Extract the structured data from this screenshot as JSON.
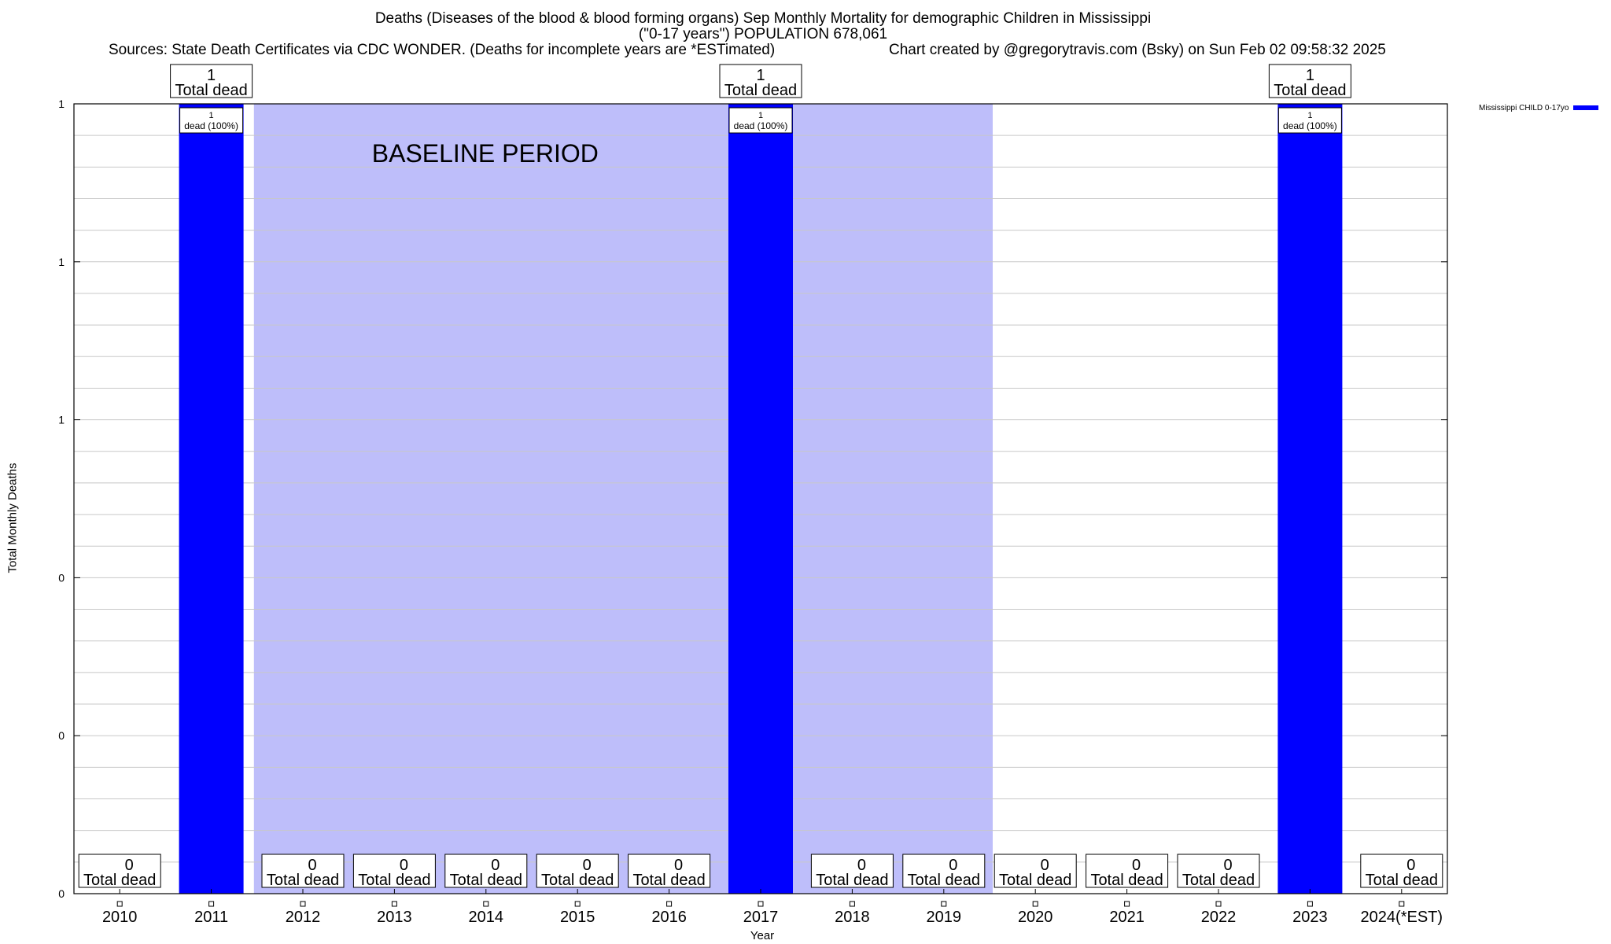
{
  "title": {
    "line1": "Deaths (Diseases of the blood & blood forming organs) Sep Monthly Mortality for demographic Children in Mississippi",
    "line2": "(\"0-17 years\") POPULATION 678,061",
    "sources": "Sources: State Death Certificates via CDC WONDER. (Deaths for incomplete years are *ESTimated)",
    "credit": "Chart created by @gregorytravis.com (Bsky) on Sun Feb 02 09:58:32 2025"
  },
  "chart_data": {
    "type": "bar",
    "xlabel": "Year",
    "ylabel": "Total Monthly Deaths",
    "ylim": [
      0,
      1
    ],
    "y_tick_labels": [
      "0",
      "0",
      "0",
      "1",
      "1",
      "1"
    ],
    "categories": [
      "2010",
      "2011",
      "2012",
      "2013",
      "2014",
      "2015",
      "2016",
      "2017",
      "2018",
      "2019",
      "2020",
      "2021",
      "2022",
      "2023",
      "2024(*EST)"
    ],
    "series": [
      {
        "name": "Mississippi CHILD 0-17yo",
        "color": "#0000ff",
        "values": [
          0,
          1,
          0,
          0,
          0,
          0,
          0,
          1,
          0,
          0,
          0,
          0,
          0,
          1,
          0
        ]
      }
    ],
    "total_label_suffix": "Total dead",
    "bar_inner_label": "dead (100%)",
    "baseline_period": {
      "label": "BASELINE PERIOD",
      "from": "2012",
      "to": "2019",
      "color": "#bebefa"
    },
    "legend_position": "top-right",
    "grid": true
  }
}
